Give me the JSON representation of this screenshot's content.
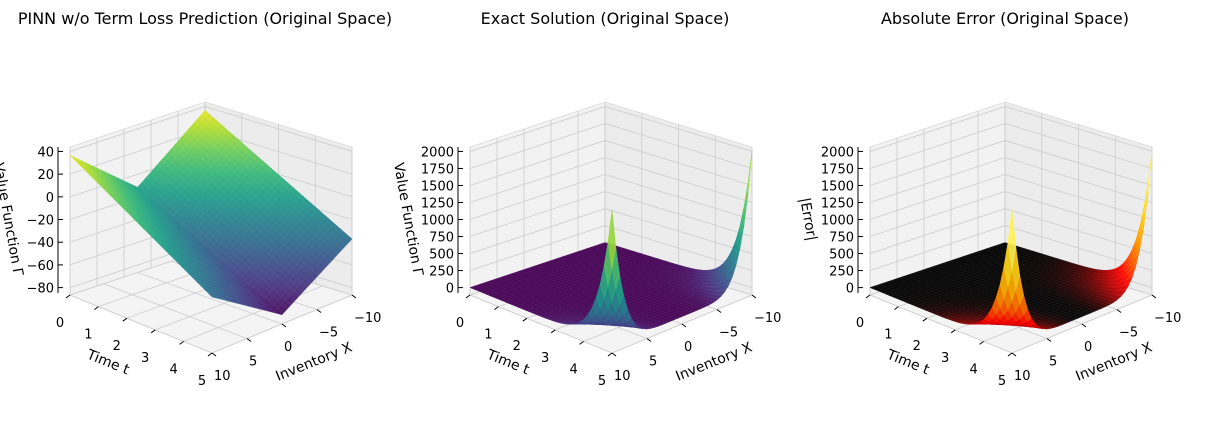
{
  "chart_data": [
    {
      "type": "surface3d",
      "title": "PINN w/o Term Loss Prediction (Original Space)",
      "xlabel": "Inventory X",
      "ylabel": "Time t",
      "zlabel": "Value Function Γ",
      "x_ticks": [
        "10",
        "5",
        "0",
        "−5",
        "−10"
      ],
      "y_ticks": [
        "0",
        "1",
        "2",
        "3",
        "4",
        "5"
      ],
      "z_ticks": [
        "40",
        "20",
        "0",
        "−20",
        "−40",
        "−60",
        "−80"
      ],
      "xlim": [
        -10,
        10
      ],
      "ylim": [
        0,
        5
      ],
      "zlim": [
        -90,
        50
      ],
      "colormap": "viridis",
      "surface": {
        "description": "V-shaped surface, symmetric in inventory",
        "corner_values": {
          "x_-10_t_0": 46,
          "x_10_t_0": 46,
          "x_0_t_5": -88,
          "x_-10_t_5": -40,
          "x_10_t_5": -40
        }
      }
    },
    {
      "type": "surface3d",
      "title": "Exact Solution (Original Space)",
      "xlabel": "Inventory X",
      "ylabel": "Time t",
      "zlabel": "Value Function Γ",
      "x_ticks": [
        "10",
        "5",
        "0",
        "−5",
        "−10"
      ],
      "y_ticks": [
        "0",
        "1",
        "2",
        "3",
        "4",
        "5"
      ],
      "z_ticks": [
        "2000",
        "1750",
        "1500",
        "1250",
        "1000",
        "750",
        "500",
        "250",
        "0"
      ],
      "xlim": [
        -10,
        10
      ],
      "ylim": [
        0,
        5
      ],
      "zlim": [
        0,
        2000
      ],
      "colormap": "viridis",
      "surface": {
        "description": "Flat near zero except spikes along the t = 5 edge at the inventory extremes",
        "peak_value": 2000,
        "peak_location": "t = 5, inventory ±10"
      }
    },
    {
      "type": "surface3d",
      "title": "Absolute Error (Original Space)",
      "xlabel": "Inventory X",
      "ylabel": "Time t",
      "zlabel": "|Error|",
      "x_ticks": [
        "10",
        "5",
        "0",
        "−5",
        "−10"
      ],
      "y_ticks": [
        "0",
        "1",
        "2",
        "3",
        "4",
        "5"
      ],
      "z_ticks": [
        "2000",
        "1750",
        "1500",
        "1250",
        "1000",
        "750",
        "500",
        "250",
        "0"
      ],
      "xlim": [
        -10,
        10
      ],
      "ylim": [
        0,
        5
      ],
      "zlim": [
        0,
        2000
      ],
      "colormap": "hot",
      "surface": {
        "description": "Flat near zero except spikes along the t = 5 edge at the inventory extremes",
        "peak_value": 2000,
        "peak_location": "t = 5, inventory ±10"
      }
    }
  ]
}
